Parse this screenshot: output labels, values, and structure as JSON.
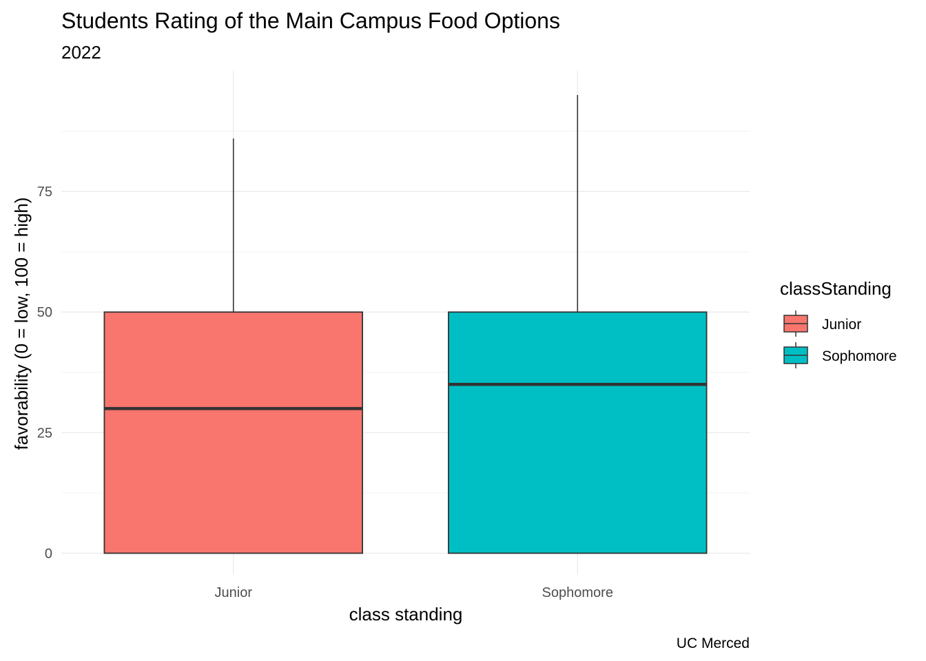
{
  "chart_data": {
    "type": "boxplot",
    "title": "Students Rating of the Main Campus Food Options",
    "subtitle": "2022",
    "xlabel": "class standing",
    "ylabel": "favorability (0 = low, 100 = high)",
    "caption": "UC Merced",
    "categories": [
      "Junior",
      "Sophomore"
    ],
    "yticks": [
      "0",
      "25",
      "50",
      "75"
    ],
    "ylim": [
      -4.5,
      100
    ],
    "grid": true,
    "legend": {
      "title": "classStanding",
      "position": "right",
      "entries": [
        "Junior",
        "Sophomore"
      ]
    },
    "series": [
      {
        "category": "Junior",
        "min": 0,
        "q1": 0,
        "median": 30,
        "q3": 50,
        "max": 86,
        "color": "#F8766D"
      },
      {
        "category": "Sophomore",
        "min": 0,
        "q1": 0,
        "median": 35,
        "q3": 50,
        "max": 95,
        "color": "#00BFC4"
      }
    ]
  }
}
